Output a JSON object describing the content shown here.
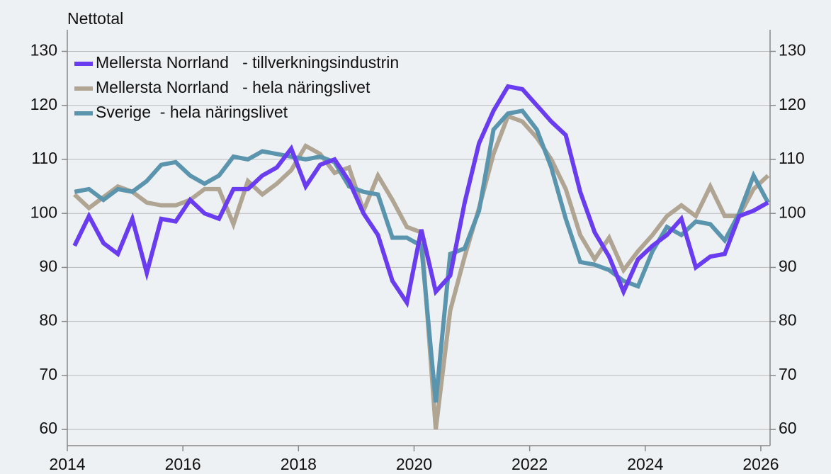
{
  "chart_data": {
    "type": "line",
    "y_label": "Nettotal",
    "x": [
      2014.125,
      2014.375,
      2014.625,
      2014.875,
      2015.125,
      2015.375,
      2015.625,
      2015.875,
      2016.125,
      2016.375,
      2016.625,
      2016.875,
      2017.125,
      2017.375,
      2017.625,
      2017.875,
      2018.125,
      2018.375,
      2018.625,
      2018.875,
      2019.125,
      2019.375,
      2019.625,
      2019.875,
      2020.125,
      2020.375,
      2020.625,
      2020.875,
      2021.125,
      2021.375,
      2021.625,
      2021.875,
      2022.125,
      2022.375,
      2022.625,
      2022.875,
      2023.125,
      2023.375,
      2023.625,
      2023.875,
      2024.125,
      2024.375,
      2024.625,
      2024.875,
      2025.125,
      2025.375,
      2025.625,
      2025.875,
      2026.125
    ],
    "series": [
      {
        "name": "Mellersta Norrland   - tillverkningsindustrin",
        "color": "#6a3cf0",
        "values": [
          94,
          99.5,
          94.5,
          92.5,
          99,
          89,
          99,
          98.5,
          102.5,
          100,
          99,
          104.5,
          104.5,
          107,
          108.5,
          112,
          105,
          109,
          110,
          106,
          100,
          96,
          87.5,
          83.5,
          97,
          85.5,
          88.5,
          102,
          113,
          119,
          123.5,
          123,
          120,
          117,
          114.5,
          104,
          96.5,
          92,
          85.5,
          91.5,
          94,
          96,
          99,
          90,
          92,
          92.5,
          99.5,
          100.5,
          102
        ]
      },
      {
        "name": "Mellersta Norrland   - hela näringslivet",
        "color": "#b0a493",
        "values": [
          103.5,
          101,
          103,
          105,
          104,
          102,
          101.5,
          101.5,
          102.5,
          104.5,
          104.5,
          98,
          106,
          103.5,
          105.5,
          108,
          112.5,
          111,
          107.5,
          108.5,
          100.5,
          107,
          102.5,
          97.5,
          96.5,
          60,
          82,
          92,
          101,
          111,
          118,
          117,
          114,
          110,
          104.5,
          96,
          91.5,
          95.5,
          89.5,
          93,
          96,
          99.5,
          101.5,
          99.5,
          105,
          99.5,
          99.5,
          104.5,
          107
        ]
      },
      {
        "name": "Sverige  - hela näringslivet",
        "color": "#5b95ad",
        "values": [
          104,
          104.5,
          102.5,
          104.5,
          104,
          106,
          109,
          109.5,
          107,
          105.5,
          107,
          110.5,
          110,
          111.5,
          111,
          110.5,
          110,
          110.5,
          109.5,
          105,
          104,
          103.5,
          95.5,
          95.5,
          94,
          65,
          92.5,
          93.5,
          100.5,
          115.5,
          118.5,
          119,
          115.5,
          108.5,
          99,
          91,
          90.5,
          89.5,
          87.5,
          86.5,
          93,
          97.5,
          96,
          98.5,
          98,
          95,
          100,
          107,
          102
        ]
      }
    ],
    "xlim": [
      2014,
      2026.16
    ],
    "xticks": [
      2014,
      2016,
      2018,
      2020,
      2022,
      2024,
      2026
    ],
    "ylim": [
      57,
      134
    ],
    "yticks": [
      60,
      70,
      80,
      90,
      100,
      110,
      120,
      130
    ],
    "y2lim": [
      57,
      134
    ],
    "y2ticks": [
      60,
      70,
      80,
      90,
      100,
      110,
      120,
      130
    ],
    "grid": true,
    "legend": "upper left"
  }
}
